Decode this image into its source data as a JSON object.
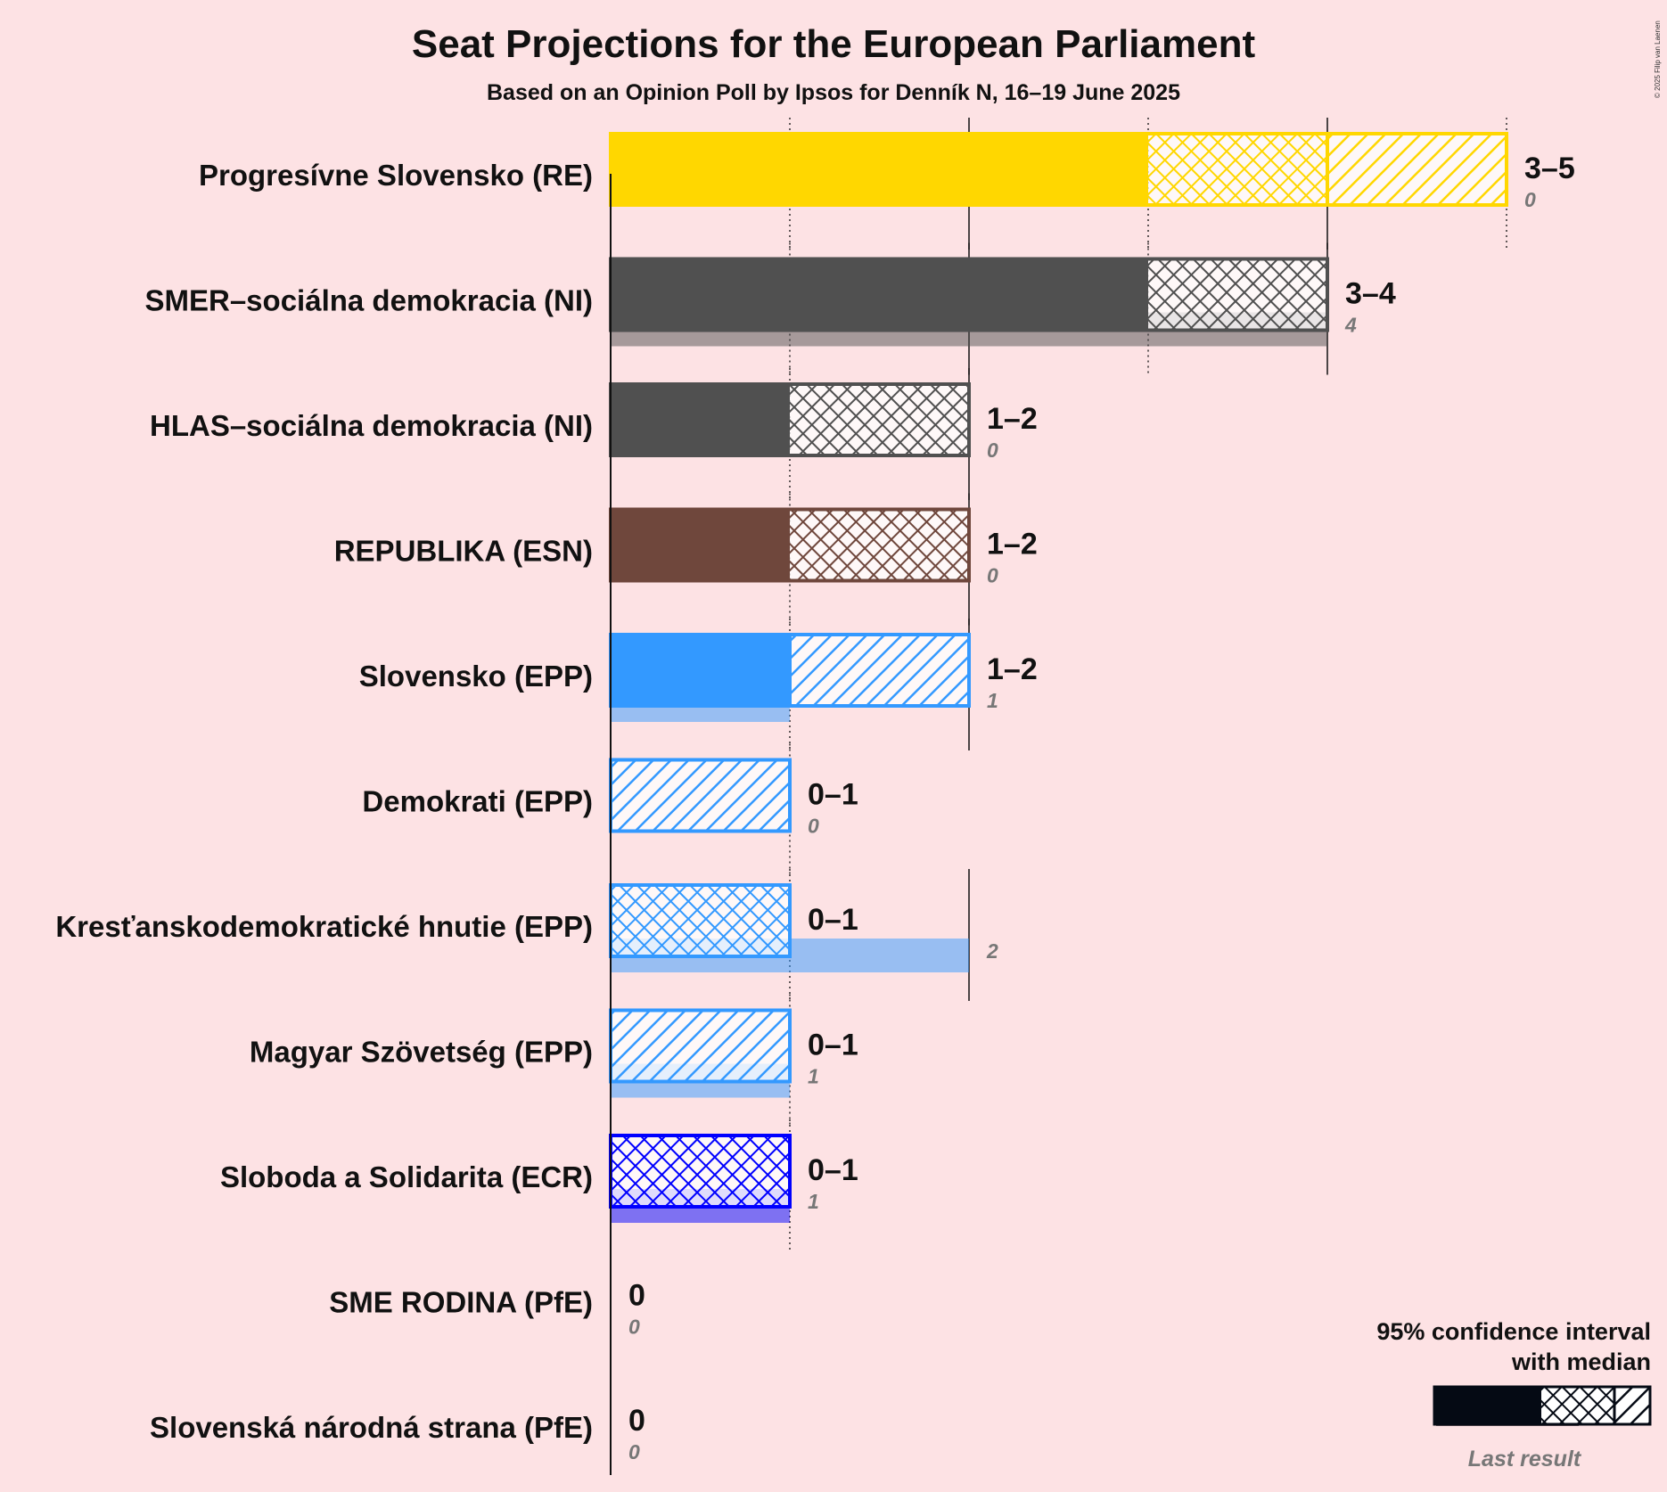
{
  "chart_data": {
    "type": "bar",
    "orientation": "horizontal",
    "title": "Seat Projections for the European Parliament",
    "subtitle": "Based on an Opinion Poll by Ipsos for Denník N, 16–19 June 2025",
    "copyright": "© 2025 Filip van Laenen",
    "xlim": [
      0,
      5
    ],
    "parties": [
      {
        "name": "Progresívne Slovensko (RE)",
        "color": "#FFD700",
        "low": 3,
        "median": 4,
        "high": 5,
        "range_label": "3–5",
        "last": 0,
        "last_label": "0"
      },
      {
        "name": "SMER–sociálna demokracia (NI)",
        "color": "#505050",
        "low": 3,
        "median": 4,
        "high": 4,
        "range_label": "3–4",
        "last": 4,
        "last_label": "4"
      },
      {
        "name": "HLAS–sociálna demokracia (NI)",
        "color": "#505050",
        "low": 1,
        "median": 2,
        "high": 2,
        "range_label": "1–2",
        "last": 0,
        "last_label": "0"
      },
      {
        "name": "REPUBLIKA (ESN)",
        "color": "#6F473C",
        "low": 1,
        "median": 2,
        "high": 2,
        "range_label": "1–2",
        "last": 0,
        "last_label": "0"
      },
      {
        "name": "Slovensko (EPP)",
        "color": "#3399FF",
        "low": 1,
        "median": 1,
        "high": 2,
        "range_label": "1–2",
        "last": 1,
        "last_label": "1"
      },
      {
        "name": "Demokrati (EPP)",
        "color": "#3399FF",
        "low": 0,
        "median": 0,
        "high": 1,
        "range_label": "0–1",
        "last": 0,
        "last_label": "0"
      },
      {
        "name": "Kresťanskodemokratické hnutie (EPP)",
        "color": "#3399FF",
        "low": 0,
        "median": 1,
        "high": 1,
        "range_label": "0–1",
        "last": 2,
        "last_label": "2"
      },
      {
        "name": "Magyar Szövetség (EPP)",
        "color": "#3399FF",
        "low": 0,
        "median": 0,
        "high": 1,
        "range_label": "0–1",
        "last": 1,
        "last_label": "1"
      },
      {
        "name": "Sloboda a Solidarita (ECR)",
        "color": "#0000FF",
        "low": 0,
        "median": 1,
        "high": 1,
        "range_label": "0–1",
        "last": 1,
        "last_label": "1"
      },
      {
        "name": "SME RODINA (PfE)",
        "color": "#888888",
        "low": 0,
        "median": 0,
        "high": 0,
        "range_label": "0",
        "last": 0,
        "last_label": "0"
      },
      {
        "name": "Slovenská národná strana (PfE)",
        "color": "#888888",
        "low": 0,
        "median": 0,
        "high": 0,
        "range_label": "0",
        "last": 0,
        "last_label": "0"
      }
    ],
    "legend": {
      "line1": "95% confidence interval",
      "line2": "with median",
      "last_result": "Last result",
      "placement": "bottom-right"
    }
  }
}
